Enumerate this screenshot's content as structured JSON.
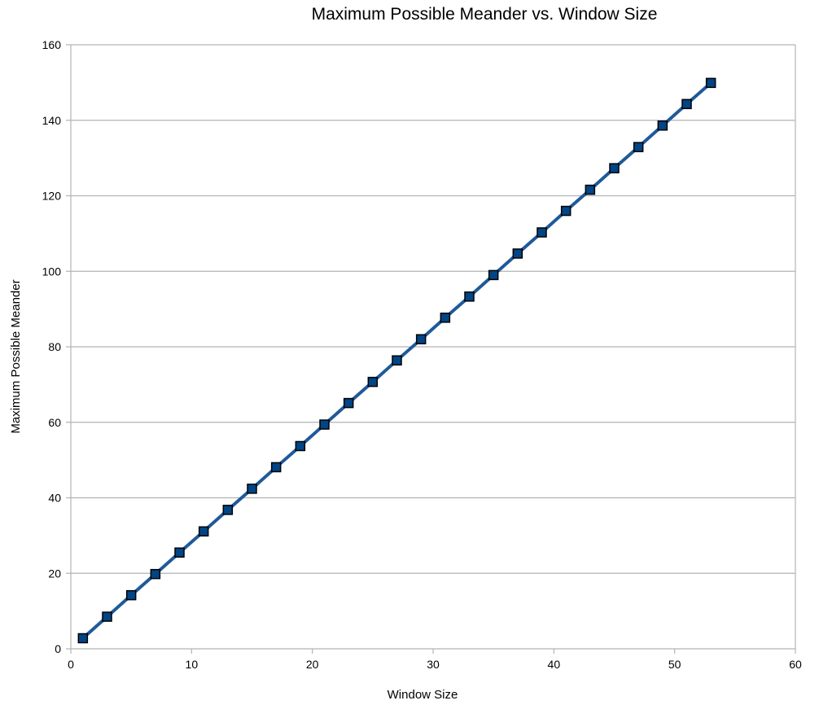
{
  "chart_data": {
    "type": "line",
    "title": "Maximum Possible Meander vs. Window Size",
    "xlabel": "Window Size",
    "ylabel": "Maximum Possible Meander",
    "xlim": [
      0,
      60
    ],
    "ylim": [
      0,
      160
    ],
    "x_ticks": [
      0,
      10,
      20,
      30,
      40,
      50,
      60
    ],
    "y_ticks": [
      0,
      20,
      40,
      60,
      80,
      100,
      120,
      140,
      160
    ],
    "grid": "horizontal",
    "legend": "none",
    "colors": {
      "line": "#1f5a99",
      "marker_fill": "#004586",
      "marker_edge": "#000000",
      "grid": "#b3b3b3",
      "axis": "#b3b3b3"
    },
    "marker": "square",
    "series": [
      {
        "x": [
          1,
          3,
          5,
          7,
          9,
          11,
          13,
          15,
          17,
          19,
          21,
          23,
          25,
          27,
          29,
          31,
          33,
          35,
          37,
          39,
          41,
          43,
          45,
          47,
          49,
          51,
          53
        ],
        "values": [
          2.8,
          8.5,
          14.2,
          19.8,
          25.5,
          31.1,
          36.8,
          42.4,
          48.1,
          53.7,
          59.4,
          65.1,
          70.7,
          76.4,
          82.0,
          87.7,
          93.3,
          99.0,
          104.7,
          110.3,
          116.0,
          121.6,
          127.3,
          132.9,
          138.6,
          144.3,
          149.9
        ]
      }
    ]
  }
}
